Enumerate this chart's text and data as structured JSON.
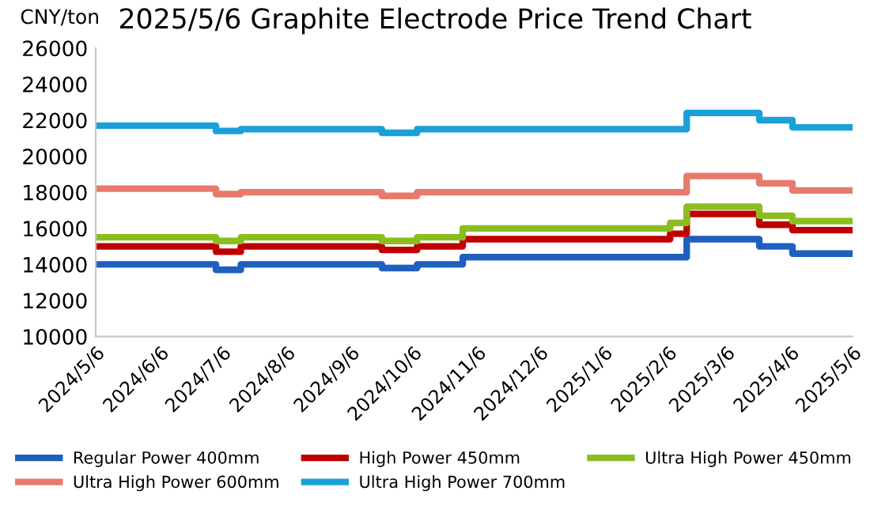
{
  "chart_data": {
    "type": "step",
    "title": "2025/5/6 Graphite Electrode Price Trend Chart",
    "ylabel": "CNY/ton",
    "xlim": [
      "2024-05-06",
      "2025-05-06"
    ],
    "xticks": [
      {
        "value": "2024-05-06",
        "label": "2024/5/6"
      },
      {
        "value": "2024-06-06",
        "label": "2024/6/6"
      },
      {
        "value": "2024-07-06",
        "label": "2024/7/6"
      },
      {
        "value": "2024-08-06",
        "label": "2024/8/6"
      },
      {
        "value": "2024-09-06",
        "label": "2024/9/6"
      },
      {
        "value": "2024-10-06",
        "label": "2024/10/6"
      },
      {
        "value": "2024-11-06",
        "label": "2024/11/6"
      },
      {
        "value": "2024-12-06",
        "label": "2024/12/6"
      },
      {
        "value": "2025-01-06",
        "label": "2025/1/6"
      },
      {
        "value": "2025-02-06",
        "label": "2025/2/6"
      },
      {
        "value": "2025-03-06",
        "label": "2025/3/6"
      },
      {
        "value": "2025-04-06",
        "label": "2025/4/6"
      },
      {
        "value": "2025-05-06",
        "label": "2025/5/6"
      }
    ],
    "ylim": [
      10000,
      26000
    ],
    "yticks": [
      10000,
      12000,
      14000,
      16000,
      18000,
      20000,
      22000,
      24000,
      26000
    ],
    "grid": false,
    "legend": "bottom",
    "marker": "none",
    "line_style": "solid",
    "series": [
      {
        "name": "Regular Power 400mm",
        "color": "#1f5fbf",
        "x": [
          "2024-05-06",
          "2024-07-03",
          "2024-07-15",
          "2024-09-21",
          "2024-10-08",
          "2024-10-30",
          "2025-02-15",
          "2025-03-22",
          "2025-04-07",
          "2025-05-06"
        ],
        "values": [
          14000,
          13700,
          14000,
          13800,
          14000,
          14400,
          15400,
          15000,
          14600,
          14600
        ]
      },
      {
        "name": "High Power 450mm",
        "color": "#c00000",
        "x": [
          "2024-05-06",
          "2024-07-03",
          "2024-07-15",
          "2024-09-21",
          "2024-10-08",
          "2024-10-30",
          "2025-02-07",
          "2025-02-15",
          "2025-03-22",
          "2025-04-07",
          "2025-05-06"
        ],
        "values": [
          15000,
          14700,
          15000,
          14800,
          15000,
          15400,
          15700,
          16800,
          16200,
          15900,
          15900
        ]
      },
      {
        "name": "Ultra High Power 450mm",
        "color": "#8bbd1f",
        "x": [
          "2024-05-06",
          "2024-07-03",
          "2024-07-15",
          "2024-09-21",
          "2024-10-08",
          "2024-10-30",
          "2025-02-07",
          "2025-02-15",
          "2025-03-22",
          "2025-04-07",
          "2025-05-06"
        ],
        "values": [
          15500,
          15300,
          15500,
          15300,
          15500,
          16000,
          16300,
          17200,
          16700,
          16400,
          16400
        ]
      },
      {
        "name": "Ultra High Power 600mm",
        "color": "#e87a6c",
        "x": [
          "2024-05-06",
          "2024-07-03",
          "2024-07-15",
          "2024-09-21",
          "2024-10-08",
          "2025-02-15",
          "2025-03-22",
          "2025-04-07",
          "2025-05-06"
        ],
        "values": [
          18200,
          17900,
          18000,
          17800,
          18000,
          18900,
          18500,
          18100,
          18100
        ]
      },
      {
        "name": "Ultra High Power 700mm",
        "color": "#1aa0d8",
        "x": [
          "2024-05-06",
          "2024-07-03",
          "2024-07-15",
          "2024-09-21",
          "2024-10-08",
          "2025-02-15",
          "2025-03-22",
          "2025-04-07",
          "2025-05-06"
        ],
        "values": [
          21700,
          21400,
          21500,
          21300,
          21500,
          22400,
          22000,
          21600,
          21600
        ]
      }
    ]
  }
}
